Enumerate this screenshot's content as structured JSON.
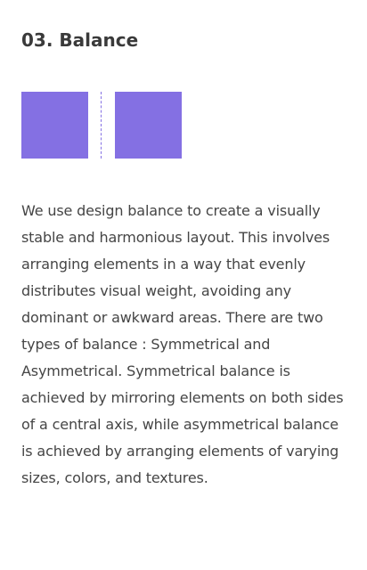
{
  "section": {
    "title": "03. Balance",
    "illustration": {
      "shape_color": "#8470e3",
      "axis_style": "dashed"
    },
    "body": "We use design balance to create a visually stable and harmonious layout. This involves arranging elements in a way that evenly distributes visual weight, avoiding any dominant or awkward areas. There are two types of balance : Symmetrical and Asymmetrical. Symmetrical balance is achieved by mirroring elements on both sides of a central axis, while asymmetrical balance is achieved by arranging elements of varying sizes, colors, and textures."
  }
}
